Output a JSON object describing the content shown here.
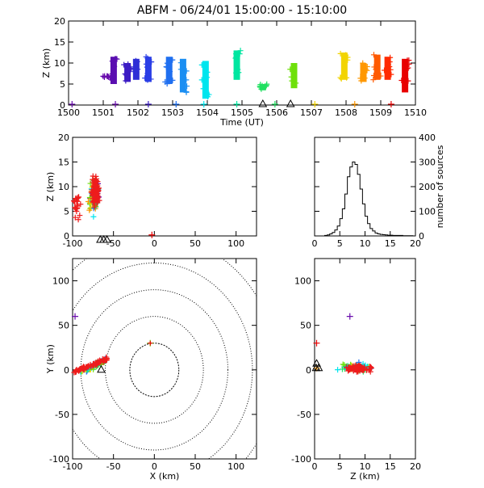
{
  "title": "ABFM - 06/24/01 15:00:00 - 15:10:00",
  "chart_data": [
    {
      "panel": "time-height",
      "type": "scatter",
      "xlabel": "Time (UT)",
      "ylabel": "Z (km)",
      "xlim": [
        1500,
        1510
      ],
      "ylim": [
        0,
        20
      ],
      "xticks": [
        "1500",
        "1501",
        "1502",
        "1503",
        "1504",
        "1505",
        "1506",
        "1507",
        "1508",
        "1509",
        "1510"
      ],
      "yticks": [
        "0",
        "5",
        "10",
        "15",
        "20"
      ],
      "clusters": [
        {
          "t": 1501.1,
          "zmin": 6.5,
          "zmax": 7.0,
          "color": "#6a0dad"
        },
        {
          "t": 1501.3,
          "zmin": 5.0,
          "zmax": 11.5,
          "color": "#5a0fb0"
        },
        {
          "t": 1501.7,
          "zmin": 5.5,
          "zmax": 10.0,
          "color": "#3c1cc4"
        },
        {
          "t": 1501.95,
          "zmin": 6.0,
          "zmax": 11.0,
          "color": "#2f2fd6"
        },
        {
          "t": 1502.3,
          "zmin": 5.5,
          "zmax": 11.5,
          "color": "#2a3ee6"
        },
        {
          "t": 1502.9,
          "zmin": 5.0,
          "zmax": 11.5,
          "color": "#1f6ff0"
        },
        {
          "t": 1503.3,
          "zmin": 3.0,
          "zmax": 11.0,
          "color": "#1a8ef2"
        },
        {
          "t": 1503.95,
          "zmin": 1.5,
          "zmax": 10.5,
          "color": "#00e5ee"
        },
        {
          "t": 1504.85,
          "zmin": 6.0,
          "zmax": 13.0,
          "color": "#00e6a0"
        },
        {
          "t": 1505.6,
          "zmin": 3.5,
          "zmax": 5.0,
          "color": "#20e060"
        },
        {
          "t": 1506.5,
          "zmin": 4.0,
          "zmax": 10.0,
          "color": "#6ee00a"
        },
        {
          "t": 1507.95,
          "zmin": 6.0,
          "zmax": 12.5,
          "color": "#f2d400"
        },
        {
          "t": 1508.5,
          "zmin": 5.5,
          "zmax": 10.0,
          "color": "#ff9800"
        },
        {
          "t": 1508.9,
          "zmin": 6.0,
          "zmax": 12.0,
          "color": "#ff5a00"
        },
        {
          "t": 1509.2,
          "zmin": 6.0,
          "zmax": 11.5,
          "color": "#ff2a00"
        },
        {
          "t": 1509.7,
          "zmin": 3.0,
          "zmax": 11.0,
          "color": "#e80000"
        }
      ],
      "ground_points": [
        {
          "t": 1500.1,
          "color": "#6a0dad"
        },
        {
          "t": 1501.35,
          "color": "#6a0dad"
        },
        {
          "t": 1502.3,
          "color": "#3c1cc4"
        },
        {
          "t": 1503.1,
          "color": "#1f6ff0"
        },
        {
          "t": 1503.9,
          "color": "#00e5ee"
        },
        {
          "t": 1504.85,
          "color": "#00e6a0"
        },
        {
          "t": 1505.95,
          "color": "#20e060"
        },
        {
          "t": 1507.1,
          "color": "#f2d400"
        },
        {
          "t": 1508.25,
          "color": "#ff9800"
        },
        {
          "t": 1509.3,
          "color": "#e80000"
        }
      ],
      "triangles_t": [
        1505.6,
        1506.4
      ]
    },
    {
      "panel": "x-height",
      "type": "scatter",
      "xlabel": "",
      "ylabel": "Z (km)",
      "xlim": [
        -100,
        125
      ],
      "ylim": [
        0,
        20
      ],
      "xticks": [
        "-100",
        "-50",
        "0",
        "50",
        "100"
      ],
      "yticks": [
        "0",
        "5",
        "10",
        "15",
        "20"
      ]
    },
    {
      "panel": "altitude-histogram",
      "type": "line",
      "ylabel": "number of sources",
      "xlim": [
        0,
        20
      ],
      "ylim": [
        0,
        400
      ],
      "xticks": [
        "0",
        "5",
        "10",
        "15",
        "20"
      ],
      "yticks": [
        "0",
        "100",
        "200",
        "300",
        "400"
      ],
      "bins_z": [
        2,
        2.5,
        3,
        3.5,
        4,
        4.5,
        5,
        5.5,
        6,
        6.5,
        7,
        7.5,
        8,
        8.5,
        9,
        9.5,
        10,
        10.5,
        11,
        11.5,
        12,
        12.5,
        13,
        13.5,
        14,
        14.5,
        15,
        16,
        17,
        18,
        19
      ],
      "counts": [
        2,
        4,
        8,
        14,
        24,
        40,
        70,
        110,
        170,
        240,
        280,
        300,
        290,
        250,
        190,
        130,
        80,
        50,
        30,
        20,
        12,
        8,
        6,
        5,
        4,
        3,
        3,
        2,
        2,
        1,
        1
      ]
    },
    {
      "panel": "plan-view",
      "type": "scatter",
      "xlabel": "X (km)",
      "ylabel": "Y (km)",
      "xlim": [
        -100,
        125
      ],
      "ylim": [
        -100,
        125
      ],
      "xticks": [
        "-100",
        "-50",
        "0",
        "50",
        "100"
      ],
      "yticks": [
        "-100",
        "-50",
        "0",
        "50",
        "100"
      ],
      "range_rings_km": [
        30,
        60,
        90,
        120,
        150
      ]
    },
    {
      "panel": "z-y",
      "type": "scatter",
      "xlabel": "Z (km)",
      "xlim": [
        0,
        20
      ],
      "ylim": [
        -100,
        125
      ],
      "xticks": [
        "0",
        "5",
        "10",
        "15",
        "20"
      ],
      "yticks": [
        "-100",
        "-50",
        "0",
        "50",
        "100"
      ]
    }
  ]
}
